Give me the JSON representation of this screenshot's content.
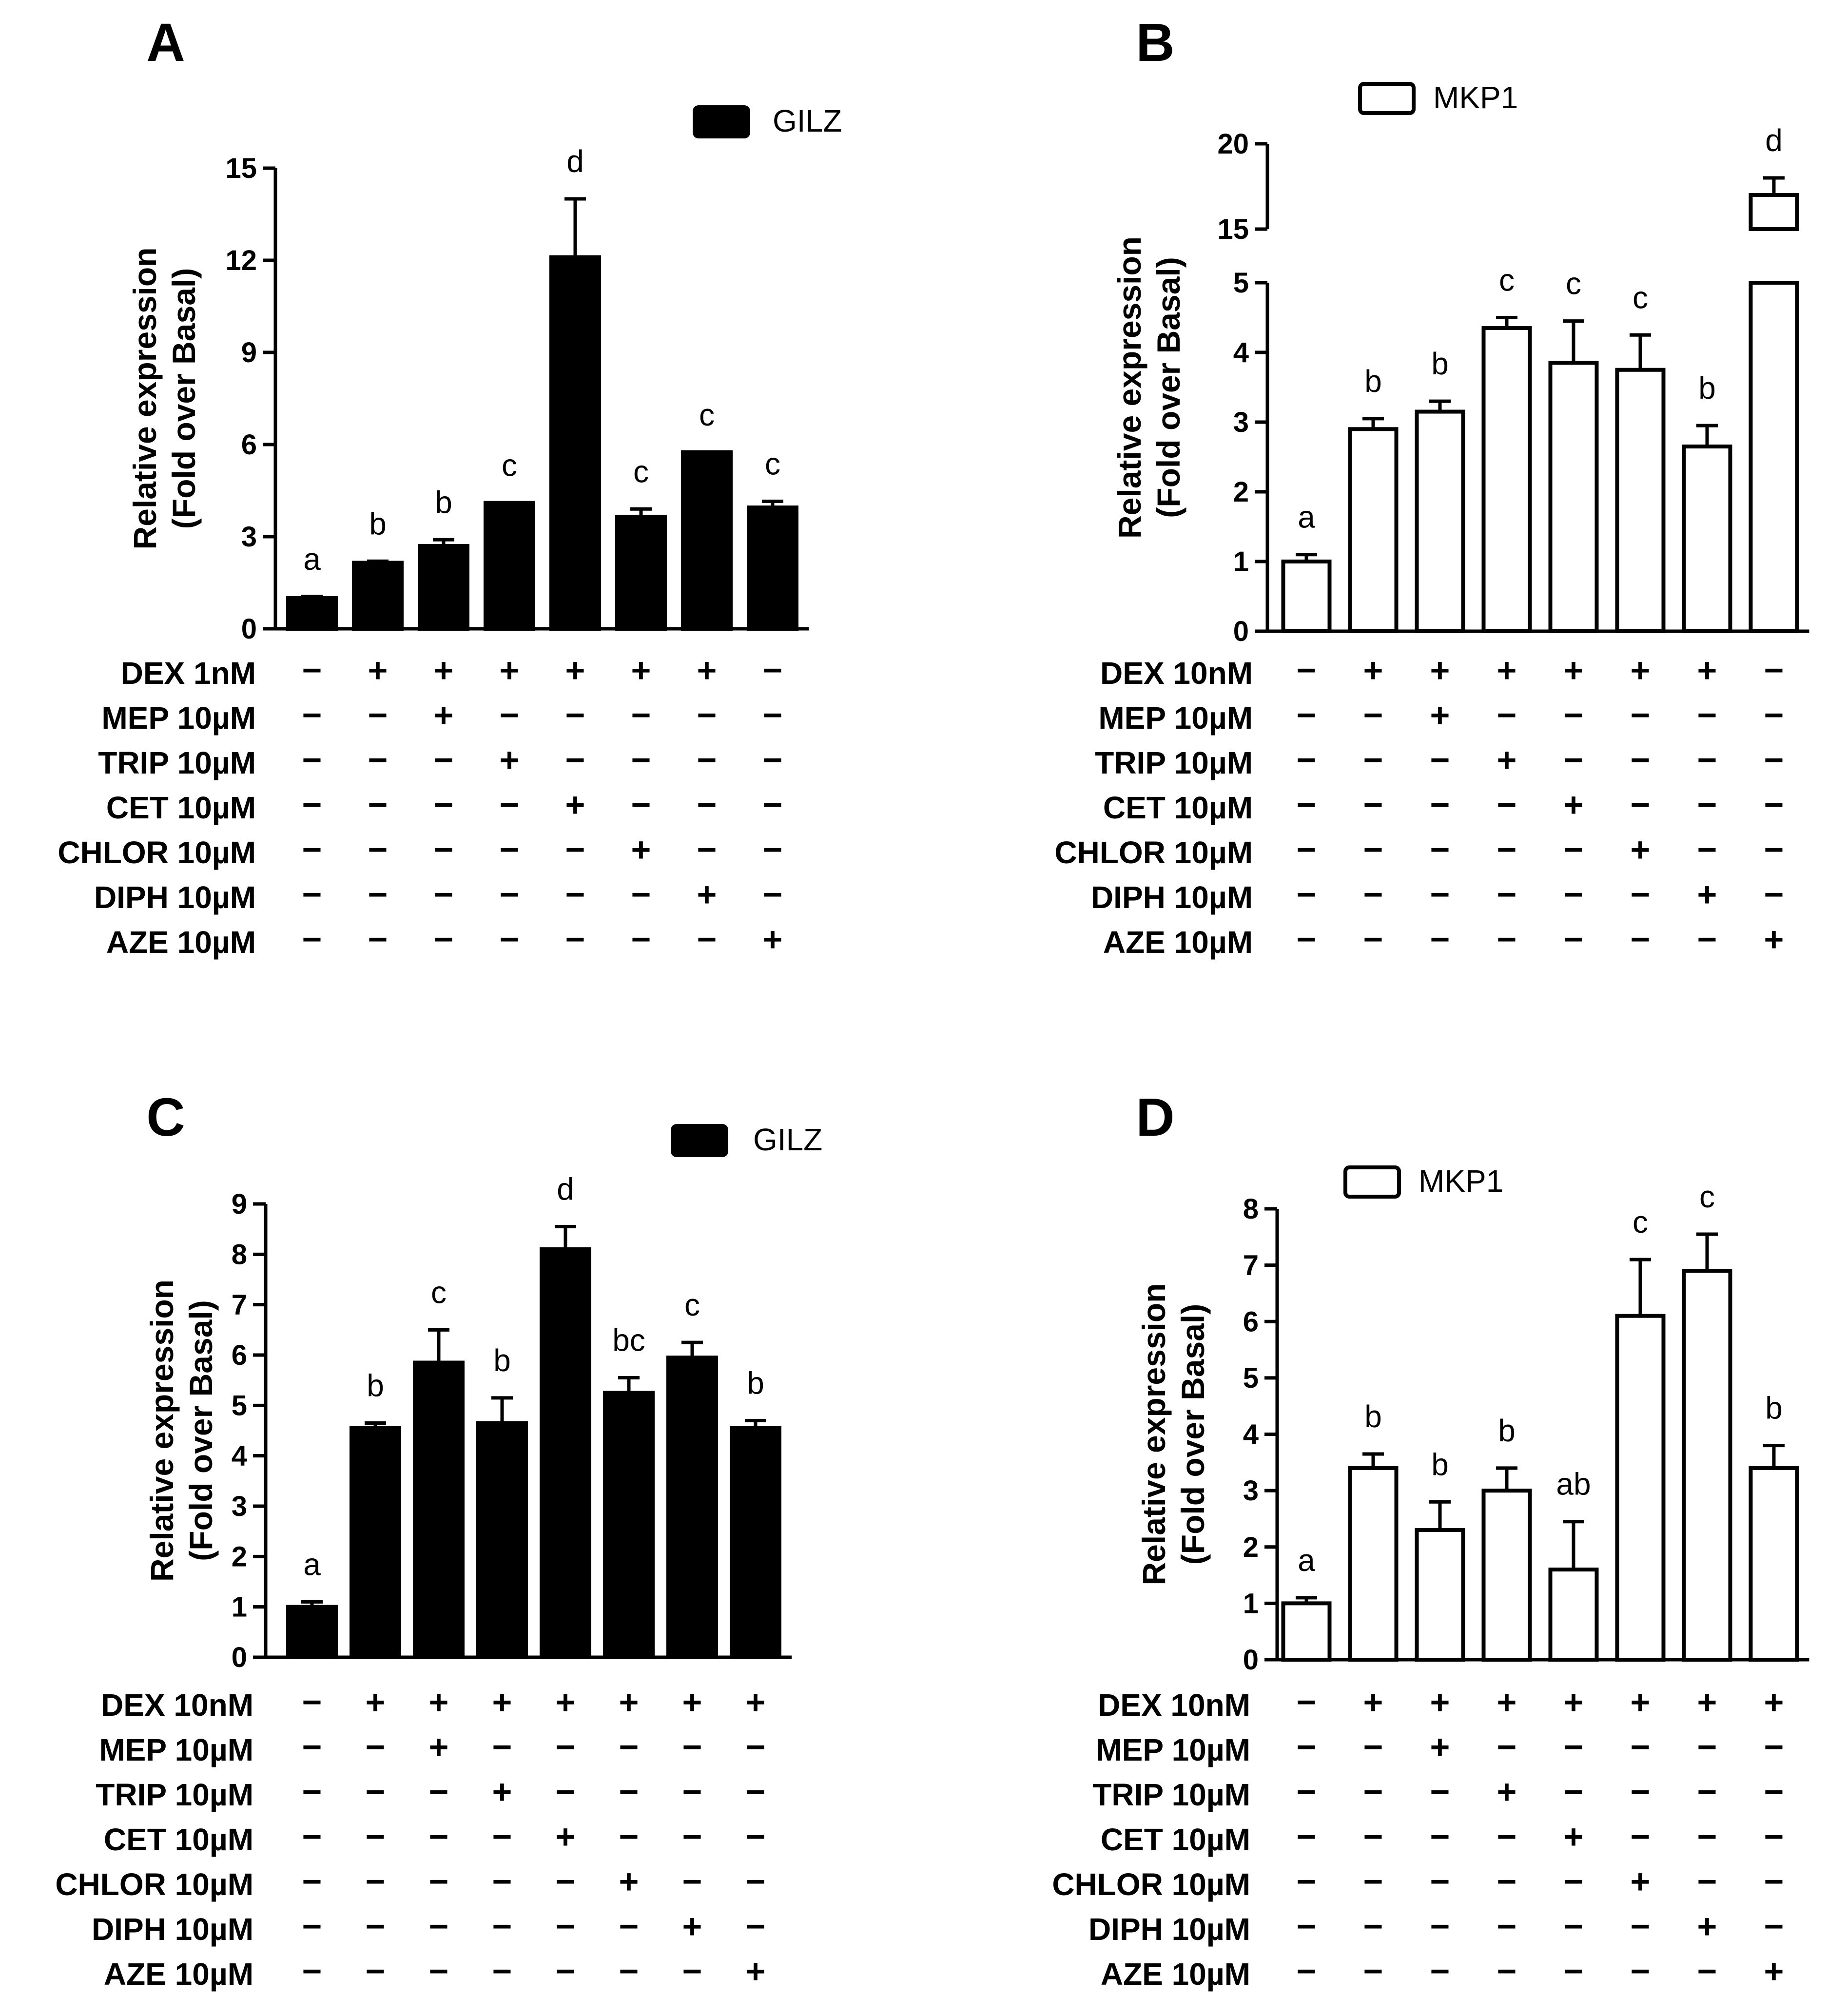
{
  "chart_data": [
    {
      "panel": "A",
      "type": "bar",
      "ylabel": "Relative expression\n(Fold over Basal)",
      "yticks": [
        0,
        3,
        6,
        9,
        12,
        15
      ],
      "ylim": [
        0,
        15
      ],
      "bar_style": "filled",
      "legend": {
        "label": "GILZ",
        "placement": "top-right"
      },
      "values": [
        1.0,
        2.15,
        2.7,
        4.1,
        12.1,
        3.65,
        5.75,
        3.95
      ],
      "errors": [
        0.05,
        0.05,
        0.2,
        0.0,
        1.9,
        0.25,
        0.0,
        0.2
      ],
      "letters": [
        "a",
        "b",
        "b",
        "c",
        "d",
        "c",
        "c",
        "c"
      ],
      "conditions": [
        {
          "label": "DEX 1nM",
          "signs": [
            "−",
            "+",
            "+",
            "+",
            "+",
            "+",
            "+",
            "−"
          ]
        },
        {
          "label": "MEP 10µM",
          "signs": [
            "−",
            "−",
            "+",
            "−",
            "−",
            "−",
            "−",
            "−"
          ]
        },
        {
          "label": "TRIP 10µM",
          "signs": [
            "−",
            "−",
            "−",
            "+",
            "−",
            "−",
            "−",
            "−"
          ]
        },
        {
          "label": "CET 10µM",
          "signs": [
            "−",
            "−",
            "−",
            "−",
            "+",
            "−",
            "−",
            "−"
          ]
        },
        {
          "label": "CHLOR 10µM",
          "signs": [
            "−",
            "−",
            "−",
            "−",
            "−",
            "+",
            "−",
            "−"
          ]
        },
        {
          "label": "DIPH 10µM",
          "signs": [
            "−",
            "−",
            "−",
            "−",
            "−",
            "−",
            "+",
            "−"
          ]
        },
        {
          "label": "AZE 10µM",
          "signs": [
            "−",
            "−",
            "−",
            "−",
            "−",
            "−",
            "−",
            "+"
          ]
        }
      ]
    },
    {
      "panel": "B",
      "type": "bar",
      "ylabel": "Relative expression\n(Fold over Basal)",
      "yticks": [
        0,
        1,
        2,
        3,
        4,
        5,
        15,
        20
      ],
      "ylim": [
        0,
        20
      ],
      "axis_break": [
        5,
        15
      ],
      "bar_style": "open",
      "legend": {
        "label": "MKP1",
        "placement": "top-left"
      },
      "values": [
        1.0,
        2.9,
        3.15,
        4.35,
        3.85,
        3.75,
        2.65,
        17.0
      ],
      "errors": [
        0.1,
        0.15,
        0.15,
        0.15,
        0.6,
        0.5,
        0.3,
        1.0
      ],
      "letters": [
        "a",
        "b",
        "b",
        "c",
        "c",
        "c",
        "b",
        "d"
      ],
      "conditions": [
        {
          "label": "DEX 10nM",
          "signs": [
            "−",
            "+",
            "+",
            "+",
            "+",
            "+",
            "+",
            "−"
          ]
        },
        {
          "label": "MEP 10µM",
          "signs": [
            "−",
            "−",
            "+",
            "−",
            "−",
            "−",
            "−",
            "−"
          ]
        },
        {
          "label": "TRIP 10µM",
          "signs": [
            "−",
            "−",
            "−",
            "+",
            "−",
            "−",
            "−",
            "−"
          ]
        },
        {
          "label": "CET 10µM",
          "signs": [
            "−",
            "−",
            "−",
            "−",
            "+",
            "−",
            "−",
            "−"
          ]
        },
        {
          "label": "CHLOR 10µM",
          "signs": [
            "−",
            "−",
            "−",
            "−",
            "−",
            "+",
            "−",
            "−"
          ]
        },
        {
          "label": "DIPH 10µM",
          "signs": [
            "−",
            "−",
            "−",
            "−",
            "−",
            "−",
            "+",
            "−"
          ]
        },
        {
          "label": "AZE  10µM",
          "signs": [
            "−",
            "−",
            "−",
            "−",
            "−",
            "−",
            "−",
            "+"
          ]
        }
      ]
    },
    {
      "panel": "C",
      "type": "bar",
      "ylabel": "Relative expression\n(Fold over Basal)",
      "yticks": [
        0,
        1,
        2,
        3,
        4,
        5,
        6,
        7,
        8,
        9
      ],
      "ylim": [
        0,
        9
      ],
      "bar_style": "filled",
      "legend": {
        "label": "GILZ",
        "placement": "top-right"
      },
      "values": [
        1.0,
        4.55,
        5.85,
        4.65,
        8.1,
        5.25,
        5.95,
        4.55
      ],
      "errors": [
        0.1,
        0.1,
        0.65,
        0.5,
        0.45,
        0.3,
        0.3,
        0.15
      ],
      "letters": [
        "a",
        "b",
        "c",
        "b",
        "d",
        "bc",
        "c",
        "b"
      ],
      "conditions": [
        {
          "label": "DEX 10nM",
          "signs": [
            "−",
            "+",
            "+",
            "+",
            "+",
            "+",
            "+",
            "+"
          ]
        },
        {
          "label": "MEP 10µM",
          "signs": [
            "−",
            "−",
            "+",
            "−",
            "−",
            "−",
            "−",
            "−"
          ]
        },
        {
          "label": "TRIP 10µM",
          "signs": [
            "−",
            "−",
            "−",
            "+",
            "−",
            "−",
            "−",
            "−"
          ]
        },
        {
          "label": "CET 10µM",
          "signs": [
            "−",
            "−",
            "−",
            "−",
            "+",
            "−",
            "−",
            "−"
          ]
        },
        {
          "label": "CHLOR 10µM",
          "signs": [
            "−",
            "−",
            "−",
            "−",
            "−",
            "+",
            "−",
            "−"
          ]
        },
        {
          "label": "DIPH 10µM",
          "signs": [
            "−",
            "−",
            "−",
            "−",
            "−",
            "−",
            "+",
            "−"
          ]
        },
        {
          "label": "AZE 10µM",
          "signs": [
            "−",
            "−",
            "−",
            "−",
            "−",
            "−",
            "−",
            "+"
          ]
        }
      ]
    },
    {
      "panel": "D",
      "type": "bar",
      "ylabel": "Relative expression\n(Fold over Basal)",
      "yticks": [
        0,
        1,
        2,
        3,
        4,
        5,
        6,
        7,
        8
      ],
      "ylim": [
        0,
        8
      ],
      "bar_style": "open",
      "legend": {
        "label": "MKP1",
        "placement": "top-left"
      },
      "values": [
        1.0,
        3.4,
        2.3,
        3.0,
        1.6,
        6.1,
        6.9,
        3.4
      ],
      "errors": [
        0.1,
        0.25,
        0.5,
        0.4,
        0.85,
        1.0,
        0.65,
        0.4
      ],
      "letters": [
        "a",
        "b",
        "b",
        "b",
        "ab",
        "c",
        "c",
        "b"
      ],
      "conditions": [
        {
          "label": "DEX 10nM",
          "signs": [
            "−",
            "+",
            "+",
            "+",
            "+",
            "+",
            "+",
            "+"
          ]
        },
        {
          "label": "MEP 10µM",
          "signs": [
            "−",
            "−",
            "+",
            "−",
            "−",
            "−",
            "−",
            "−"
          ]
        },
        {
          "label": "TRIP 10µM",
          "signs": [
            "−",
            "−",
            "−",
            "+",
            "−",
            "−",
            "−",
            "−"
          ]
        },
        {
          "label": "CET 10µM",
          "signs": [
            "−",
            "−",
            "−",
            "−",
            "+",
            "−",
            "−",
            "−"
          ]
        },
        {
          "label": "CHLOR 10µM",
          "signs": [
            "−",
            "−",
            "−",
            "−",
            "−",
            "+",
            "−",
            "−"
          ]
        },
        {
          "label": "DIPH 10µM",
          "signs": [
            "−",
            "−",
            "−",
            "−",
            "−",
            "−",
            "+",
            "−"
          ]
        },
        {
          "label": "AZE 10µM",
          "signs": [
            "−",
            "−",
            "−",
            "−",
            "−",
            "−",
            "−",
            "+"
          ]
        }
      ]
    }
  ]
}
